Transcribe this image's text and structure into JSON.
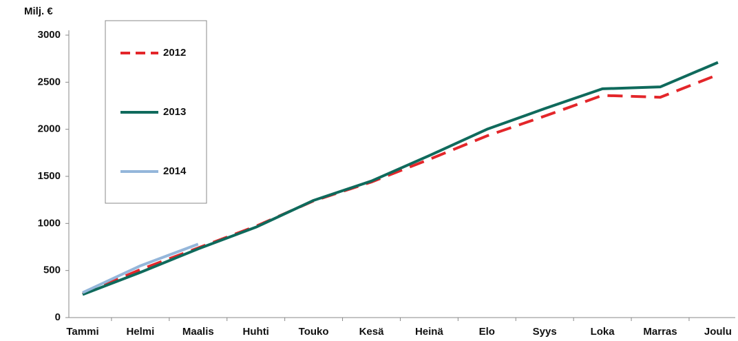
{
  "chart_data": {
    "type": "line",
    "y_label": "Milj. €",
    "categories": [
      "Tammi",
      "Helmi",
      "Maalis",
      "Huhti",
      "Touko",
      "Kesä",
      "Heinä",
      "Elo",
      "Syys",
      "Loka",
      "Marras",
      "Joulu"
    ],
    "series": [
      {
        "name": "2012",
        "color": "#e3262a",
        "dash": true,
        "values": [
          250,
          510,
          740,
          970,
          1240,
          1440,
          1680,
          1930,
          2140,
          2360,
          2340,
          2580
        ]
      },
      {
        "name": "2013",
        "color": "#0f6a5c",
        "dash": false,
        "values": [
          245,
          480,
          730,
          960,
          1245,
          1450,
          1720,
          2000,
          2220,
          2430,
          2450,
          2710
        ]
      },
      {
        "name": "2014",
        "color": "#94b6da",
        "dash": false,
        "values": [
          265,
          550,
          780,
          null,
          null,
          null,
          null,
          null,
          null,
          null,
          null,
          null
        ]
      }
    ],
    "ylim": [
      0,
      3000
    ],
    "yticks": [
      0,
      500,
      1000,
      1500,
      2000,
      2500,
      3000
    ],
    "grid": false
  }
}
